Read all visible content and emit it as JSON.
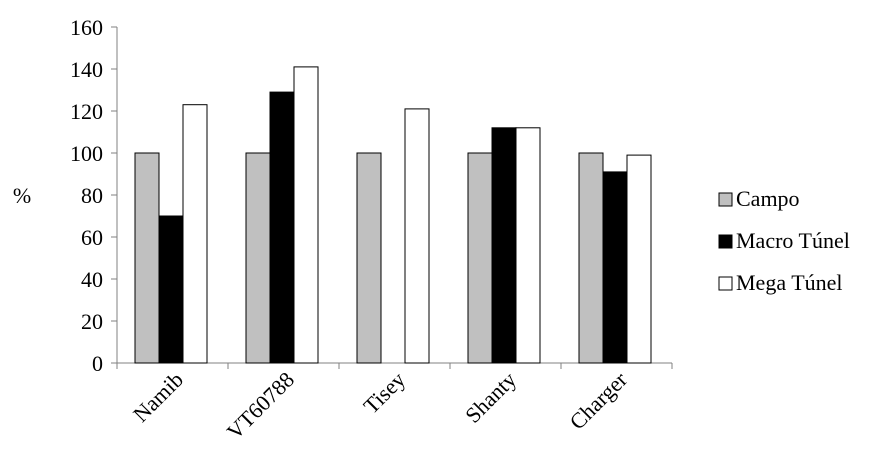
{
  "chart_data": {
    "type": "bar",
    "title": "",
    "xlabel": "",
    "ylabel": "%",
    "ylim": [
      0,
      160
    ],
    "yticks": [
      0,
      20,
      40,
      60,
      80,
      100,
      120,
      140,
      160
    ],
    "grid": false,
    "legend_position": "right",
    "categories": [
      "Namib",
      "VT60788",
      "Tisey",
      "Shanty",
      "Charger"
    ],
    "series": [
      {
        "name": "Campo",
        "color": "#c0c0c0",
        "values": [
          100,
          100,
          100,
          100,
          100
        ]
      },
      {
        "name": "Macro Túnel",
        "color": "#000000",
        "values": [
          70,
          129,
          0,
          112,
          91
        ]
      },
      {
        "name": "Mega Túnel",
        "color": "#ffffff",
        "values": [
          123,
          141,
          121,
          112,
          99
        ]
      }
    ]
  }
}
